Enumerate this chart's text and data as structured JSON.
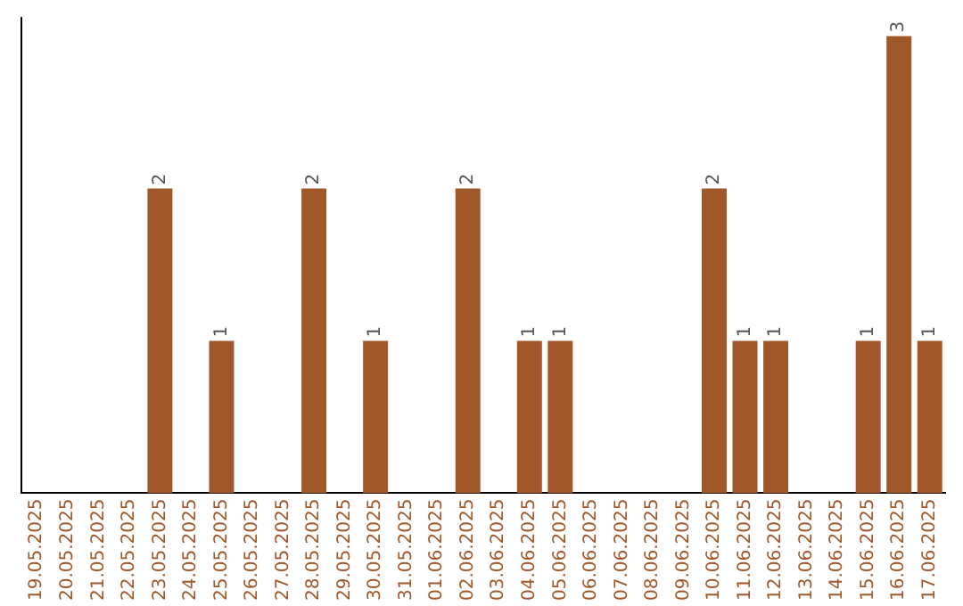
{
  "chart_data": {
    "type": "bar",
    "categories": [
      "19.05.2025",
      "20.05.2025",
      "21.05.2025",
      "22.05.2025",
      "23.05.2025",
      "24.05.2025",
      "25.05.2025",
      "26.05.2025",
      "27.05.2025",
      "28.05.2025",
      "29.05.2025",
      "30.05.2025",
      "31.05.2025",
      "01.06.2025",
      "02.06.2025",
      "03.06.2025",
      "04.06.2025",
      "05.06.2025",
      "06.06.2025",
      "07.06.2025",
      "08.06.2025",
      "09.06.2025",
      "10.06.2025",
      "11.06.2025",
      "12.06.2025",
      "13.06.2025",
      "14.06.2025",
      "15.06.2025",
      "16.06.2025",
      "17.06.2025"
    ],
    "values": [
      0,
      0,
      0,
      0,
      2,
      0,
      1,
      0,
      0,
      2,
      0,
      1,
      0,
      0,
      2,
      0,
      1,
      1,
      0,
      0,
      0,
      0,
      2,
      1,
      1,
      0,
      0,
      1,
      3,
      1
    ],
    "value_labels": [
      null,
      null,
      null,
      null,
      "2",
      null,
      "1",
      null,
      null,
      "2",
      null,
      "1",
      null,
      null,
      "2",
      null,
      "1",
      "1",
      null,
      null,
      null,
      null,
      "2",
      "1",
      "1",
      null,
      null,
      "1",
      "3",
      "1"
    ],
    "color": "#a0582a",
    "tick_labels": "x",
    "grid": false,
    "legend": false
  }
}
